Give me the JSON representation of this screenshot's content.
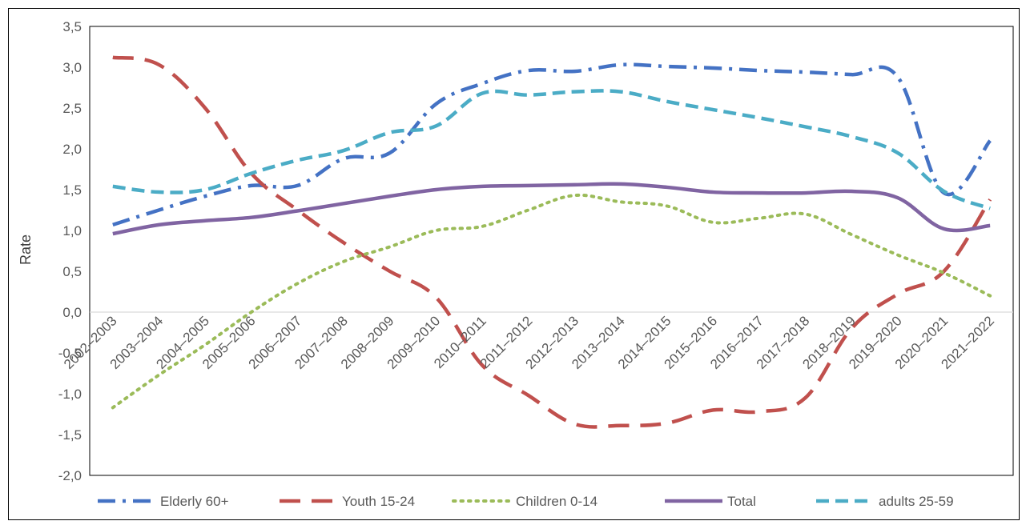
{
  "chart_data": {
    "type": "line",
    "title": "",
    "xlabel": "",
    "ylabel": "Rate",
    "ylim": [
      -2.0,
      3.5
    ],
    "ytick_step": 0.5,
    "ytick_labels": [
      "-2,0",
      "-1,5",
      "-1,0",
      "-0,5",
      "0,0",
      "0,5",
      "1,0",
      "1,5",
      "2,0",
      "2,5",
      "3,0",
      "3,5"
    ],
    "grid": false,
    "legend_position": "bottom",
    "categories": [
      "2002–2003",
      "2003–2004",
      "2004–2005",
      "2005–2006",
      "2006–2007",
      "2007–2008",
      "2008–2009",
      "2009–2010",
      "2010–2011",
      "2011–2012",
      "2012–2013",
      "2013–2014",
      "2014–2015",
      "2015–2016",
      "2016–2017",
      "2017–2018",
      "2018–2019",
      "2019–2020",
      "2020–2021",
      "2021–2022"
    ],
    "series": [
      {
        "name": "Elderly 60+",
        "color": "#4472C4",
        "dash": "dashdot",
        "values": [
          1.07,
          1.25,
          1.42,
          1.55,
          1.55,
          1.88,
          1.95,
          2.55,
          2.8,
          2.96,
          2.95,
          3.03,
          3.01,
          2.99,
          2.96,
          2.94,
          2.91,
          2.88,
          1.46,
          2.1
        ]
      },
      {
        "name": "Youth 15-24",
        "color": "#C0504D",
        "dash": "longdash",
        "values": [
          3.12,
          3.03,
          2.5,
          1.7,
          1.25,
          0.85,
          0.5,
          0.18,
          -0.65,
          -1.02,
          -1.37,
          -1.39,
          -1.36,
          -1.2,
          -1.22,
          -1.05,
          -0.2,
          0.22,
          0.5,
          1.38
        ]
      },
      {
        "name": "Children 0-14",
        "color": "#9BBB59",
        "dash": "dotted",
        "values": [
          -1.17,
          -0.77,
          -0.4,
          0.0,
          0.35,
          0.62,
          0.8,
          1.0,
          1.05,
          1.25,
          1.43,
          1.35,
          1.3,
          1.1,
          1.15,
          1.2,
          0.95,
          0.7,
          0.48,
          0.2
        ]
      },
      {
        "name": "Total",
        "color": "#8064A2",
        "dash": "solid",
        "values": [
          0.96,
          1.07,
          1.12,
          1.16,
          1.24,
          1.33,
          1.42,
          1.5,
          1.54,
          1.55,
          1.56,
          1.57,
          1.53,
          1.47,
          1.46,
          1.46,
          1.48,
          1.4,
          1.02,
          1.06
        ]
      },
      {
        "name": "adults 25-59",
        "color": "#4BACC6",
        "dash": "dash",
        "values": [
          1.54,
          1.47,
          1.5,
          1.7,
          1.86,
          1.98,
          2.2,
          2.28,
          2.68,
          2.66,
          2.7,
          2.7,
          2.58,
          2.48,
          2.38,
          2.27,
          2.15,
          1.95,
          1.48,
          1.27
        ]
      }
    ]
  }
}
